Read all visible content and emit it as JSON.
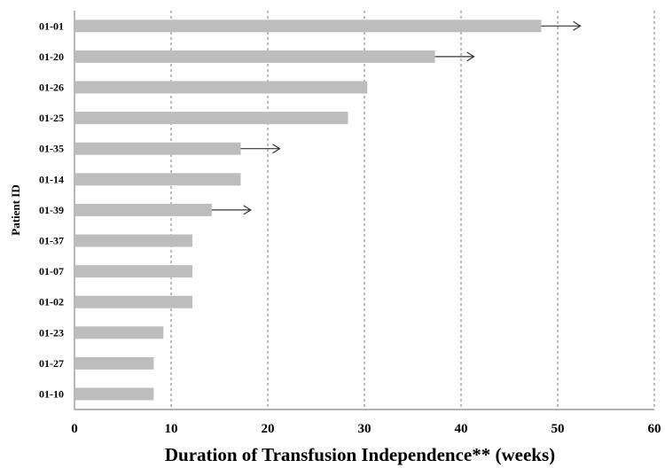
{
  "chart_data": {
    "type": "bar",
    "orientation": "horizontal",
    "xlabel": "Duration of Transfusion Independence** (weeks)",
    "ylabel": "Patient ID",
    "xlim": [
      0,
      60
    ],
    "x_ticks": [
      "0",
      "10",
      "20",
      "30",
      "40",
      "50",
      "60"
    ],
    "grid": "vertical dashed",
    "categories": [
      "01-01",
      "01-20",
      "01-26",
      "01-25",
      "01-35",
      "01-14",
      "01-39",
      "01-37",
      "01-07",
      "01-02",
      "01-23",
      "01-27",
      "01-10"
    ],
    "values": [
      48.3,
      37.3,
      30.3,
      28.3,
      17.2,
      17.2,
      14.2,
      12.2,
      12.2,
      12.2,
      9.2,
      8.2,
      8.2
    ],
    "ongoing": [
      true,
      true,
      false,
      false,
      true,
      false,
      true,
      false,
      false,
      false,
      false,
      false,
      false
    ],
    "bar_color": "#bdbdbd",
    "arrow_color": "#333333"
  }
}
